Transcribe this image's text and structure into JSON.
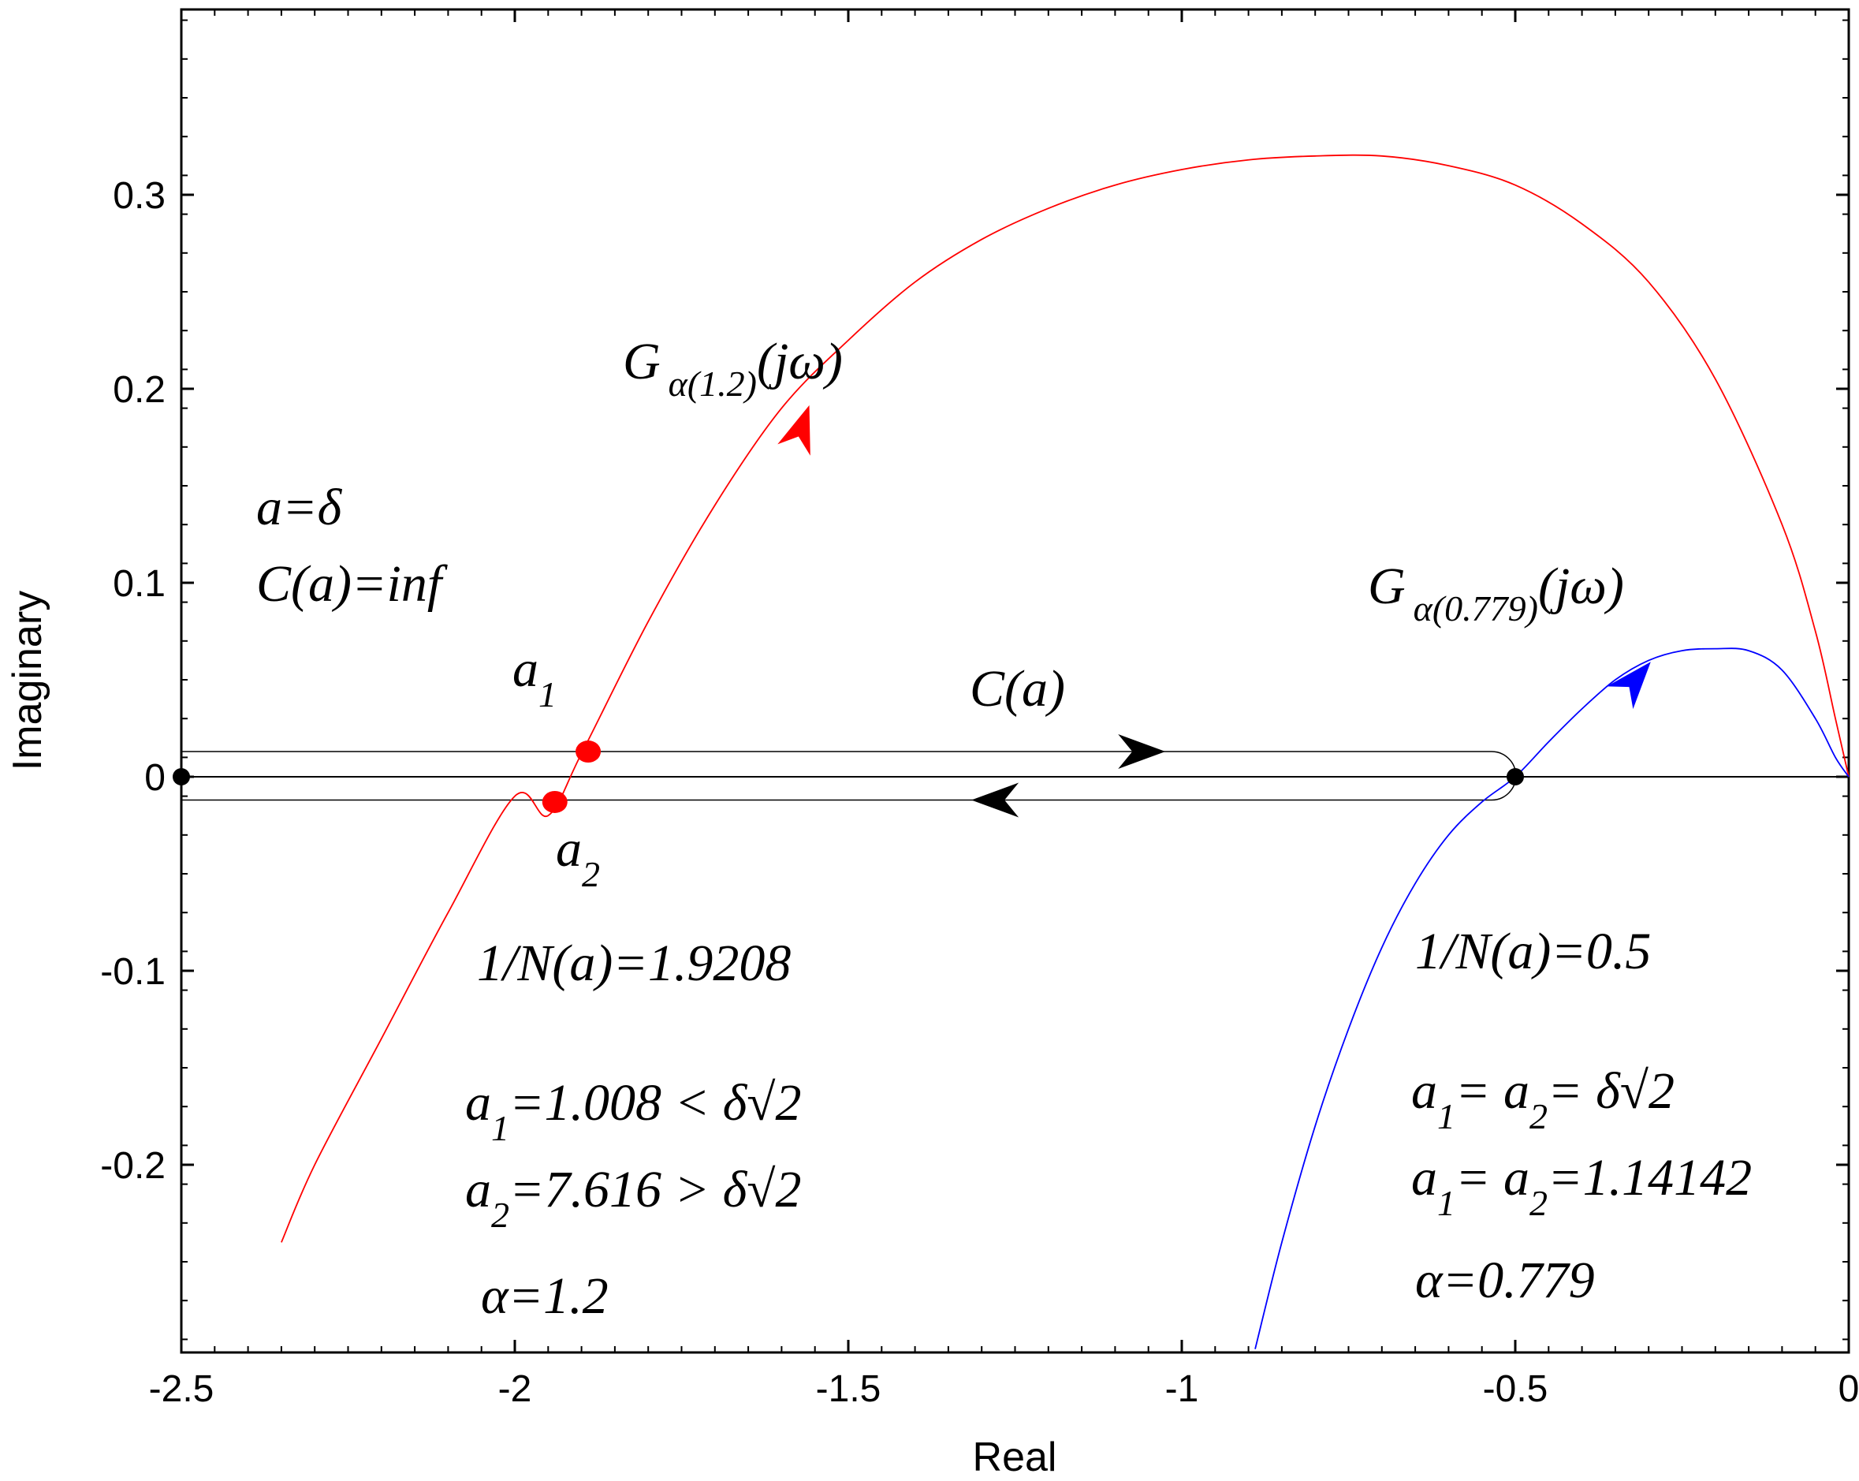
{
  "chart_data": {
    "type": "line",
    "title": "",
    "xlabel": "Real",
    "ylabel": "Imaginary",
    "xlim": [
      -2.5,
      0
    ],
    "ylim": [
      -0.295,
      0.395
    ],
    "x_ticks": [
      -2.5,
      -2,
      -1.5,
      -1,
      -0.5,
      0
    ],
    "x_tick_labels": [
      "-2.5",
      "-2",
      "-1.5",
      "-1",
      "-0.5",
      "0"
    ],
    "y_ticks": [
      -0.2,
      -0.1,
      0,
      0.1,
      0.2,
      0.3
    ],
    "y_tick_labels": [
      "-0.2",
      "-0.1",
      "0",
      "0.1",
      "0.2",
      "0.3"
    ],
    "series": [
      {
        "name": "G_alpha(1.2)(jw)",
        "color": "#ff0000",
        "x": [
          -2.35,
          -2.3,
          -2.2,
          -2.1,
          -2.0,
          -1.95,
          -1.9,
          -1.8,
          -1.7,
          -1.6,
          -1.5,
          -1.4,
          -1.3,
          -1.2,
          -1.1,
          -1.0,
          -0.9,
          -0.8,
          -0.7,
          -0.6,
          -0.5,
          -0.4,
          -0.3,
          -0.2,
          -0.1,
          -0.05,
          -0.02,
          0.0
        ],
        "y": [
          -0.24,
          -0.2,
          -0.135,
          -0.07,
          -0.01,
          -0.02,
          0.012,
          0.08,
          0.14,
          0.19,
          0.225,
          0.255,
          0.277,
          0.293,
          0.305,
          0.313,
          0.318,
          0.32,
          0.32,
          0.315,
          0.305,
          0.285,
          0.255,
          0.205,
          0.13,
          0.075,
          0.03,
          0.0
        ]
      },
      {
        "name": "G_alpha(0.779)(jw)",
        "color": "#0000ff",
        "x": [
          -0.89,
          -0.85,
          -0.8,
          -0.75,
          -0.7,
          -0.65,
          -0.6,
          -0.55,
          -0.5,
          -0.45,
          -0.4,
          -0.35,
          -0.3,
          -0.25,
          -0.2,
          -0.15,
          -0.1,
          -0.05,
          -0.02,
          0.0
        ],
        "y": [
          -0.295,
          -0.24,
          -0.18,
          -0.13,
          -0.088,
          -0.055,
          -0.03,
          -0.013,
          0.0,
          0.018,
          0.035,
          0.05,
          0.06,
          0.065,
          0.066,
          0.065,
          0.055,
          0.03,
          0.01,
          0.0
        ]
      }
    ],
    "c_path": {
      "name": "C(a)",
      "upper_y": 0.013,
      "lower_y": -0.012,
      "x_start": -2.5,
      "x_end": -0.5
    },
    "points": [
      {
        "name": "origin-left",
        "x": -2.5,
        "y": 0.0,
        "color": "#000000"
      },
      {
        "name": "a1",
        "x": -1.89,
        "y": 0.013,
        "color": "#ff0000"
      },
      {
        "name": "a2",
        "x": -1.94,
        "y": -0.013,
        "color": "#ff0000"
      },
      {
        "name": "crossing",
        "x": -0.5,
        "y": 0.0,
        "color": "#000000"
      }
    ],
    "arrows": [
      {
        "name": "red-arrow",
        "x": -1.57,
        "y": 0.18,
        "dx": 0.05,
        "dy": 0.05,
        "color": "#ff0000"
      },
      {
        "name": "blue-arrow",
        "x": -0.32,
        "y": 0.05,
        "dx": 0.05,
        "dy": 0.02,
        "color": "#0000ff"
      },
      {
        "name": "c-arrow-right",
        "x": -1.06,
        "y": 0.013,
        "dx": 1,
        "dy": 0,
        "color": "#000000"
      },
      {
        "name": "c-arrow-left",
        "x": -1.28,
        "y": -0.012,
        "dx": -1,
        "dy": 0,
        "color": "#000000"
      }
    ],
    "annotations": {
      "g12_main": "G",
      "g12_sub": "α(1.2)",
      "g12_rest": "(jω)",
      "g0779_main": "G",
      "g0779_sub": "α(0.779)",
      "g0779_rest": "(jω)",
      "a_delta": "a=δ",
      "c_inf": "C(a)=inf",
      "a1_main": "a",
      "a1_sub": "1",
      "a2_main": "a",
      "a2_sub": "2",
      "c_a": "C(a)",
      "n_left": "1/N(a)=1.9208",
      "n_right": "1/N(a)=0.5",
      "left_l1_a": "a",
      "left_l1_sub": "1",
      "left_l1_rest": "=1.008 < δ√2",
      "left_l2_a": "a",
      "left_l2_sub": "2",
      "left_l2_rest": "=7.616 > δ√2",
      "alpha_left": "α=1.2",
      "right_l1_a": "a",
      "right_l1_sub": "1",
      "right_l1_mid": "= a",
      "right_l1_sub2": "2",
      "right_l1_rest": "= δ√2",
      "right_l2_a": "a",
      "right_l2_sub": "1",
      "right_l2_mid": "= a",
      "right_l2_sub2": "2",
      "right_l2_rest": "=1.14142",
      "alpha_right": "α=0.779"
    }
  }
}
